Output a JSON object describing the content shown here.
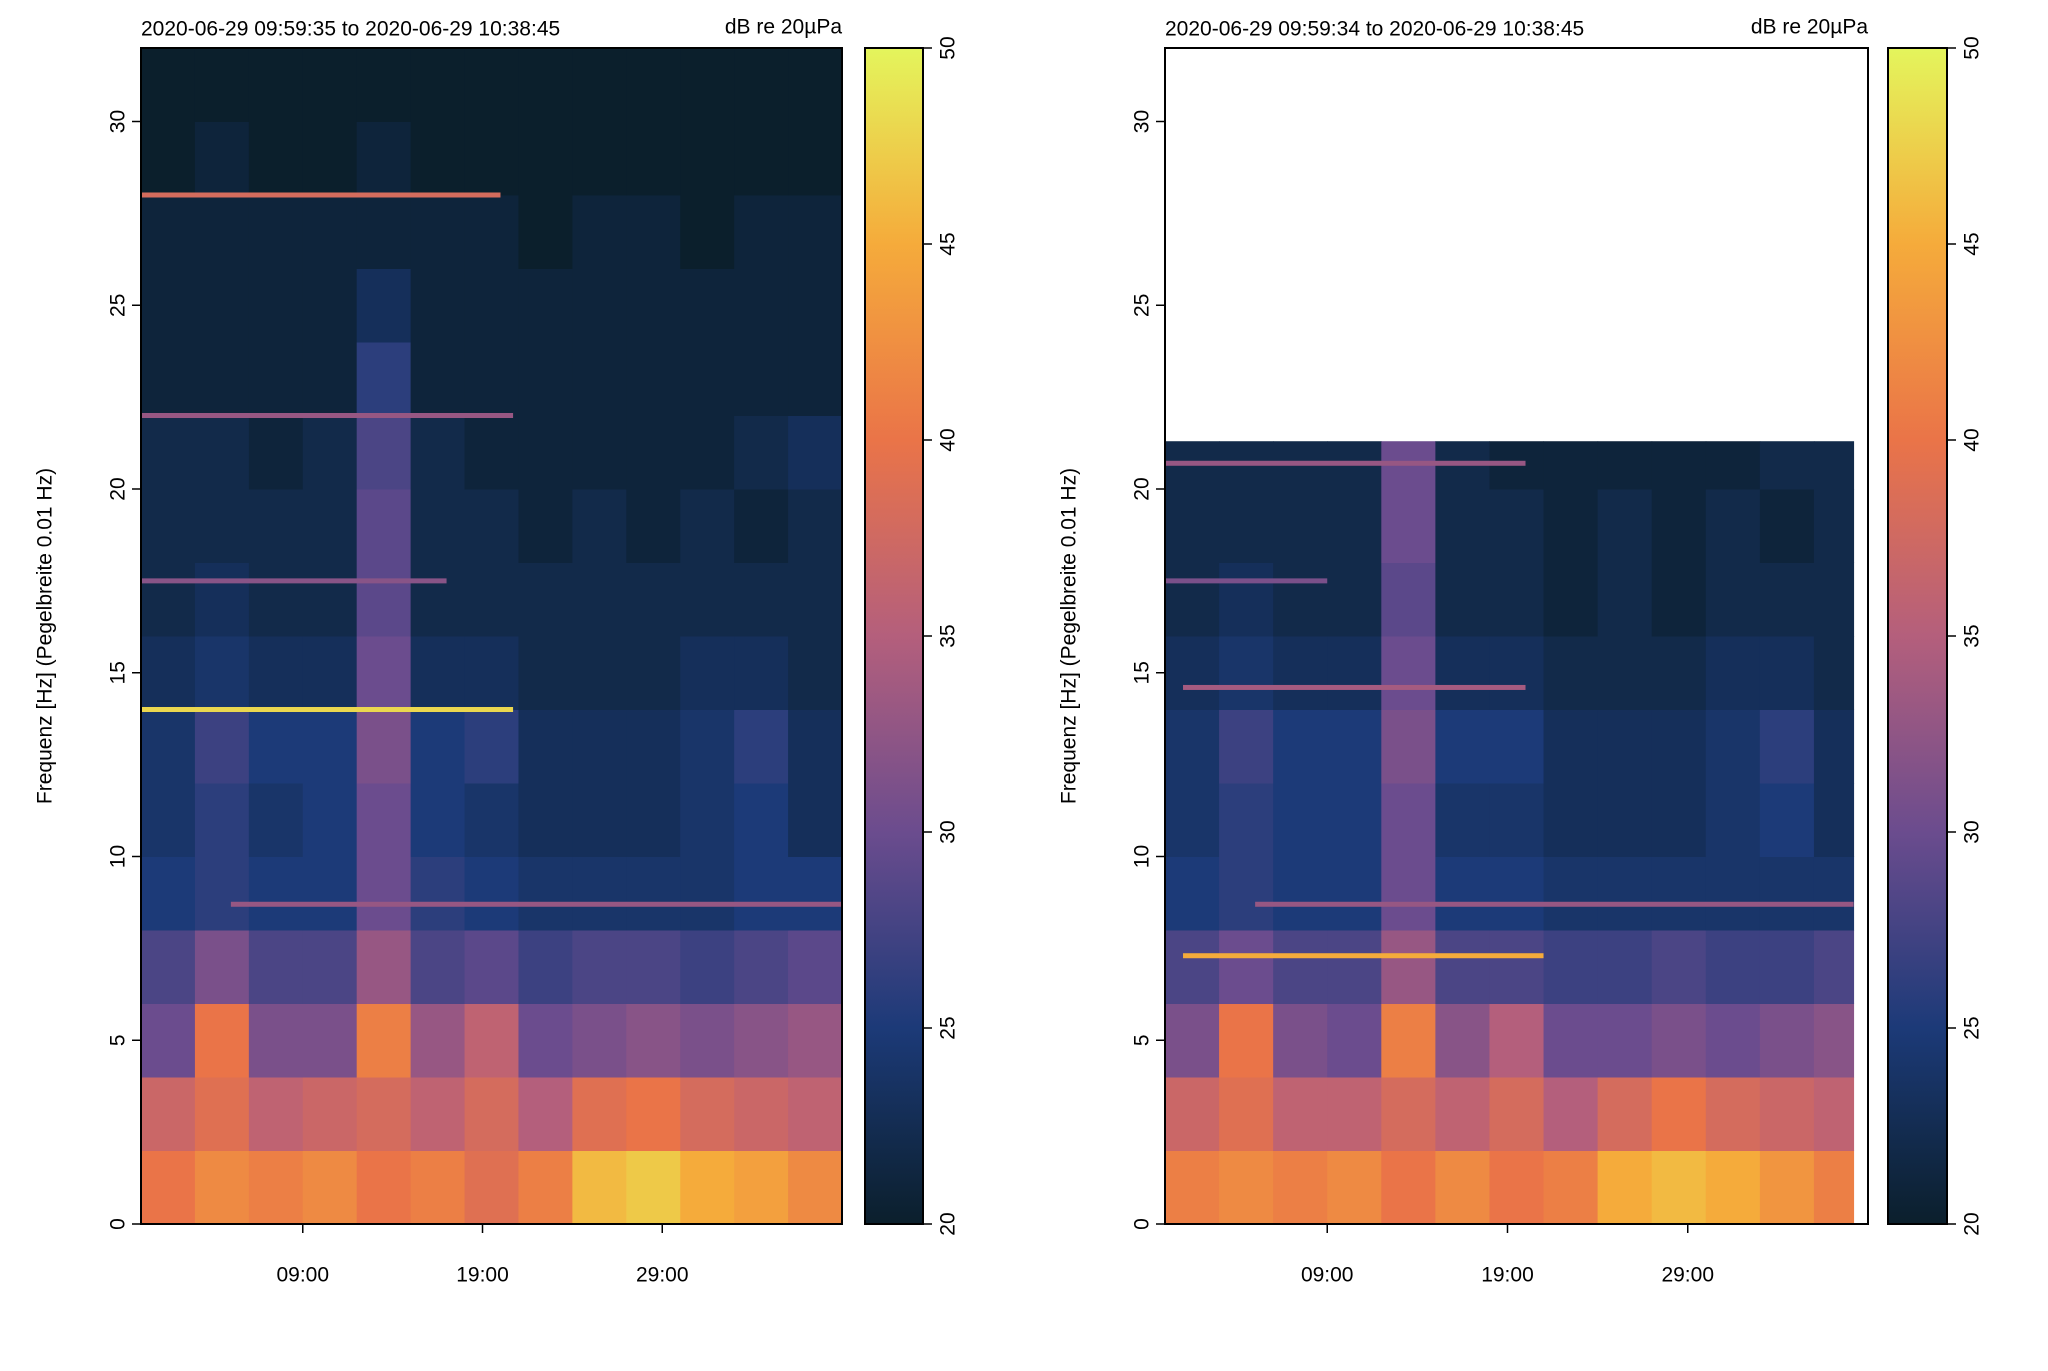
{
  "chart_data": [
    {
      "type": "heatmap",
      "title": "2020-06-29 09:59:35 to 2020-06-29 10:38:45",
      "colorbar_label": "dB re 20µPa",
      "ylabel": "Frequenz [Hz] (Pegelbreite 0.01 Hz)",
      "xlim": [
        0,
        39
      ],
      "ylim": [
        0,
        32
      ],
      "xticks": [
        {
          "value": 9,
          "label": "09:00"
        },
        {
          "value": 19,
          "label": "19:00"
        },
        {
          "value": 29,
          "label": "29:00"
        }
      ],
      "yticks": [
        0,
        5,
        10,
        15,
        20,
        25,
        30
      ],
      "zlim": [
        20,
        50
      ],
      "zticks": [
        20,
        25,
        30,
        35,
        40,
        45,
        50
      ],
      "colorscale": [
        "#0b1f2c",
        "#1c3a78",
        "#6b4c8e",
        "#b45f7c",
        "#ea7448",
        "#f5ab3b",
        "#e4f55c"
      ],
      "x_bins": [
        0,
        3,
        6,
        9,
        12,
        15,
        18,
        21,
        24,
        27,
        30,
        33,
        36,
        39
      ],
      "y_bins": [
        0,
        2,
        4,
        6,
        8,
        10,
        12,
        14,
        16,
        18,
        20,
        22,
        24,
        26,
        28,
        30,
        32
      ],
      "z": [
        [
          40,
          42,
          41,
          42,
          40,
          41,
          39,
          41,
          46,
          47,
          45,
          44,
          42
        ],
        [
          37,
          39,
          36,
          37,
          38,
          36,
          38,
          35,
          39,
          40,
          38,
          37,
          36
        ],
        [
          30,
          40,
          31,
          31,
          41,
          33,
          36,
          30,
          31,
          32,
          31,
          32,
          33
        ],
        [
          28,
          31,
          28,
          28,
          33,
          28,
          29,
          27,
          28,
          28,
          27,
          28,
          29
        ],
        [
          25,
          26,
          25,
          25,
          30,
          26,
          25,
          24,
          24,
          24,
          24,
          25,
          25
        ],
        [
          24,
          26,
          24,
          25,
          30,
          25,
          24,
          23,
          23,
          23,
          24,
          25,
          23
        ],
        [
          24,
          27,
          25,
          25,
          31,
          25,
          26,
          23,
          23,
          23,
          24,
          26,
          23
        ],
        [
          23,
          24,
          23,
          23,
          30,
          23,
          23,
          22,
          22,
          22,
          23,
          23,
          22
        ],
        [
          22,
          23,
          22,
          22,
          29,
          22,
          22,
          22,
          22,
          22,
          22,
          22,
          22
        ],
        [
          22,
          22,
          22,
          22,
          29,
          22,
          22,
          21,
          22,
          21,
          22,
          21,
          22
        ],
        [
          22,
          22,
          21,
          22,
          28,
          22,
          21,
          21,
          21,
          21,
          21,
          22,
          23
        ],
        [
          21,
          21,
          21,
          21,
          26,
          21,
          21,
          21,
          21,
          21,
          21,
          21,
          21
        ],
        [
          21,
          21,
          21,
          21,
          23,
          21,
          21,
          21,
          21,
          21,
          21,
          21,
          21
        ],
        [
          21,
          21,
          21,
          21,
          21,
          21,
          21,
          20,
          21,
          21,
          20,
          21,
          21
        ],
        [
          20,
          21,
          20,
          20,
          21,
          20,
          20,
          20,
          20,
          20,
          20,
          20,
          20
        ],
        [
          20,
          20,
          20,
          20,
          20,
          20,
          20,
          20,
          20,
          20,
          20,
          20,
          20
        ]
      ],
      "tones": [
        {
          "freq": 28,
          "x": [
            0,
            20
          ],
          "value": 38
        },
        {
          "freq": 22,
          "x": [
            0,
            20.7
          ],
          "value": 33
        },
        {
          "freq": 17.5,
          "x": [
            0,
            17
          ],
          "value": 32
        },
        {
          "freq": 14,
          "x": [
            0,
            20.7
          ],
          "value": 48
        },
        {
          "freq": 8.7,
          "x": [
            5,
            39
          ],
          "value": 33
        }
      ]
    },
    {
      "type": "heatmap",
      "title": "2020-06-29 09:59:34 to 2020-06-29 10:38:45",
      "colorbar_label": "dB re 20µPa",
      "ylabel": "Frequenz [Hz] (Pegelbreite 0.01 Hz)",
      "xlim": [
        0,
        39
      ],
      "ylim": [
        0,
        32
      ],
      "xticks": [
        {
          "value": 9,
          "label": "09:00"
        },
        {
          "value": 19,
          "label": "19:00"
        },
        {
          "value": 29,
          "label": "29:00"
        }
      ],
      "yticks": [
        0,
        5,
        10,
        15,
        20,
        25,
        30
      ],
      "zlim": [
        20,
        50
      ],
      "zticks": [
        20,
        25,
        30,
        35,
        40,
        45,
        50
      ],
      "colorscale": [
        "#0b1f2c",
        "#1c3a78",
        "#6b4c8e",
        "#b45f7c",
        "#ea7448",
        "#f5ab3b",
        "#e4f55c"
      ],
      "x_bins": [
        0,
        3,
        6,
        9,
        12,
        15,
        18,
        21,
        24,
        27,
        30,
        33,
        36,
        38.2
      ],
      "y_bins": [
        0,
        2,
        4,
        6,
        8,
        10,
        12,
        14,
        16,
        18,
        20,
        21.3
      ],
      "z": [
        [
          41,
          42,
          41,
          42,
          40,
          42,
          40,
          41,
          45,
          46,
          45,
          43,
          41
        ],
        [
          37,
          39,
          36,
          36,
          38,
          36,
          38,
          35,
          38,
          40,
          38,
          37,
          36
        ],
        [
          31,
          40,
          31,
          30,
          41,
          32,
          35,
          30,
          30,
          31,
          30,
          31,
          32
        ],
        [
          28,
          30,
          28,
          28,
          33,
          28,
          28,
          27,
          27,
          28,
          27,
          27,
          28
        ],
        [
          25,
          26,
          25,
          25,
          30,
          25,
          25,
          24,
          24,
          24,
          24,
          24,
          24
        ],
        [
          24,
          26,
          25,
          25,
          30,
          24,
          24,
          23,
          23,
          23,
          24,
          25,
          23
        ],
        [
          24,
          27,
          25,
          25,
          31,
          25,
          25,
          23,
          23,
          23,
          24,
          26,
          23
        ],
        [
          23,
          24,
          23,
          23,
          30,
          23,
          23,
          22,
          22,
          22,
          23,
          23,
          22
        ],
        [
          22,
          23,
          22,
          22,
          29,
          22,
          22,
          21,
          22,
          21,
          22,
          22,
          22
        ],
        [
          22,
          22,
          22,
          22,
          30,
          22,
          22,
          21,
          22,
          21,
          22,
          21,
          22
        ],
        [
          22,
          22,
          22,
          22,
          30,
          22,
          21,
          21,
          21,
          21,
          21,
          22,
          22
        ]
      ],
      "tones": [
        {
          "freq": 20.7,
          "x": [
            0,
            20
          ],
          "value": 33
        },
        {
          "freq": 17.5,
          "x": [
            0,
            9
          ],
          "value": 31
        },
        {
          "freq": 14.6,
          "x": [
            1,
            20
          ],
          "value": 34
        },
        {
          "freq": 8.7,
          "x": [
            5,
            38.2
          ],
          "value": 33
        },
        {
          "freq": 7.3,
          "x": [
            1,
            21
          ],
          "value": 45
        }
      ]
    }
  ]
}
